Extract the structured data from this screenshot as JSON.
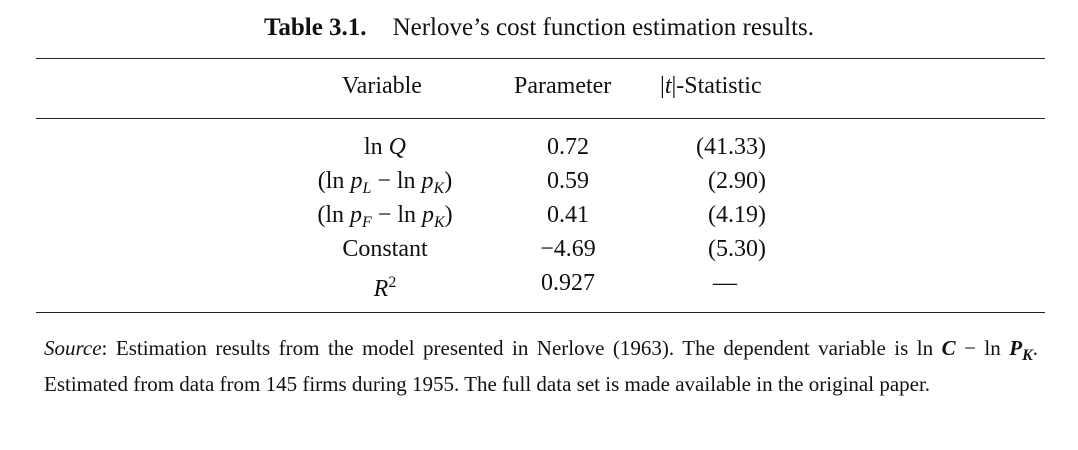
{
  "caption": {
    "label": "Table 3.1.",
    "text": "Nerlove’s cost function estimation results."
  },
  "headers": {
    "variable": "Variable",
    "parameter": "Parameter",
    "tstat": "|t|-Statistic"
  },
  "rows": [
    {
      "variable": "ln Q",
      "parameter": "0.72",
      "tstat": "(41.33)"
    },
    {
      "variable": "(ln pL − ln pK)",
      "parameter": "0.59",
      "tstat": "(2.90)"
    },
    {
      "variable": "(ln pF − ln pK)",
      "parameter": "0.41",
      "tstat": "(4.19)"
    },
    {
      "variable": "Constant",
      "parameter": "−4.69",
      "tstat": "(5.30)"
    },
    {
      "variable": "R2",
      "parameter": "0.927",
      "tstat": "—"
    }
  ],
  "note": {
    "source_label": "Source",
    "line1": ": Estimation results from the model presented in Nerlove (1963). The dependent variable is",
    "dep_var": "ln C − ln PK",
    "line2": ". Estimated from data from 145 firms during 1955. The full data set is made available in the original paper."
  }
}
